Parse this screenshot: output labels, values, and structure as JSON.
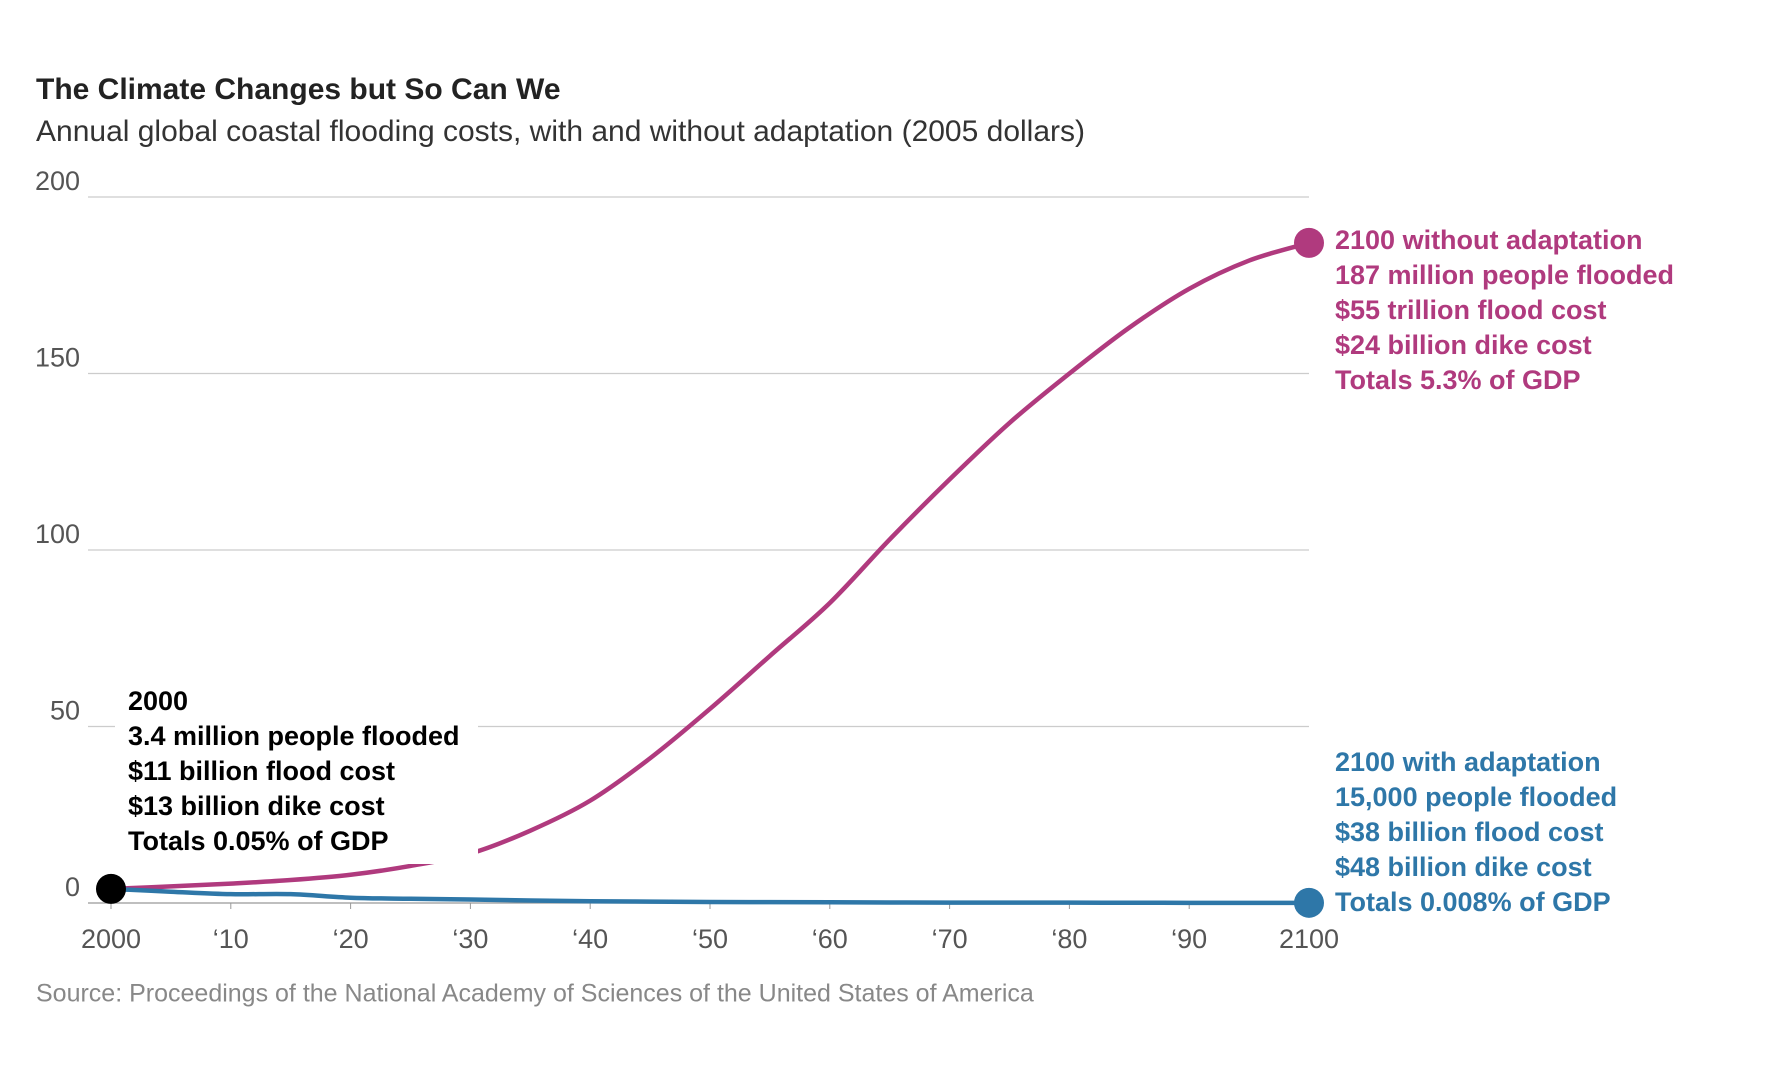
{
  "chart_data": {
    "type": "line",
    "title": "The Climate Changes but So Can We",
    "subtitle": "Annual global coastal flooding costs, with and without adaptation (2005 dollars)",
    "source": "Source: Proceedings of the National Academy of Sciences of the United States of America",
    "x": [
      2000,
      2005,
      2010,
      2015,
      2020,
      2025,
      2030,
      2035,
      2040,
      2045,
      2050,
      2055,
      2060,
      2065,
      2070,
      2075,
      2080,
      2085,
      2090,
      2095,
      2100
    ],
    "series": [
      {
        "color": "#b03a7e",
        "values": [
          4,
          4.7,
          5.5,
          6.5,
          8,
          10.5,
          14,
          20.5,
          29,
          41,
          55,
          70,
          85,
          103,
          120,
          136,
          150,
          163,
          174,
          182,
          187
        ]
      },
      {
        "color": "#2e77a8",
        "values": [
          4,
          3.2,
          2.5,
          2.5,
          1.5,
          1.2,
          1,
          0.7,
          0.5,
          0.4,
          0.3,
          0.25,
          0.2,
          0.15,
          0.1,
          0.1,
          0.1,
          0.07,
          0.05,
          0.05,
          0.05
        ]
      }
    ],
    "start_color": "#000000",
    "xlim": [
      2000,
      2100
    ],
    "xticks": [
      2000,
      {
        "value": 2010,
        "label": "‘10"
      },
      {
        "value": 2020,
        "label": "‘20"
      },
      {
        "value": 2030,
        "label": "‘30"
      },
      {
        "value": 2040,
        "label": "‘40"
      },
      {
        "value": 2050,
        "label": "‘50"
      },
      {
        "value": 2060,
        "label": "‘60"
      },
      {
        "value": 2070,
        "label": "‘70"
      },
      {
        "value": 2080,
        "label": "‘80"
      },
      {
        "value": 2090,
        "label": "‘90"
      },
      2100
    ],
    "ylim": [
      0,
      200
    ],
    "yticks": [
      0,
      50,
      100,
      150,
      200
    ],
    "grid": true,
    "annotations": [
      {
        "color": "#000000",
        "lines": [
          "2000",
          "3.4 million people flooded",
          "$11 billion flood cost",
          "$13 billion dike cost",
          "Totals 0.05% of GDP"
        ]
      },
      {
        "color": "#b03a7e",
        "lines": [
          "2100 without adaptation",
          "187 million people flooded",
          "$55 trillion flood cost",
          "$24 billion dike cost",
          "Totals 5.3% of GDP"
        ]
      },
      {
        "color": "#2e77a8",
        "lines": [
          "2100 with adaptation",
          "15,000 people flooded",
          "$38 billion flood cost",
          "$48 billion dike cost",
          "Totals 0.008% of GDP"
        ]
      }
    ]
  }
}
